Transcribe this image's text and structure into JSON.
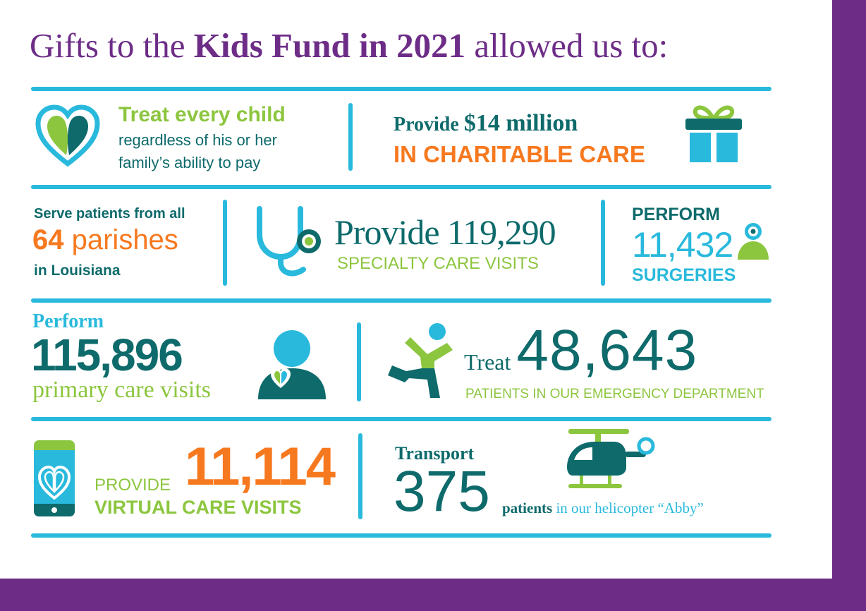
{
  "title": {
    "pre": "Gifts to the ",
    "bold": "Kids Fund in 2021",
    "post": " allowed us to:"
  },
  "row1": {
    "left": {
      "headline": "Treat every child",
      "line2": "regardless of his or her",
      "line3": "family’s ability to pay",
      "icon": "heart-icon"
    },
    "right": {
      "pre": "Provide ",
      "amount": "$14 million",
      "line2": "IN CHARITABLE CARE",
      "icon": "gift-icon"
    }
  },
  "row2": {
    "left": {
      "line1": "Serve patients from all",
      "number": "64",
      "unit": " parishes",
      "line3": "in Louisiana"
    },
    "middle": {
      "text": "Provide 119,290",
      "line2": "SPECIALTY CARE VISITS",
      "icon": "stethoscope-icon"
    },
    "right": {
      "line1": "PERFORM",
      "number": "11,432",
      "line3": "SURGERIES",
      "icon": "patient-icon"
    }
  },
  "row3": {
    "left": {
      "line1": "Perform",
      "number": "115,896",
      "line3": "primary care visits",
      "icon": "doctor-icon"
    },
    "right": {
      "pre": "Treat ",
      "number": "48,643",
      "line2": "PATIENTS IN OUR EMERGENCY DEPARTMENT",
      "icon": "child-icon"
    }
  },
  "row4": {
    "left": {
      "pre": "PROVIDE",
      "number": "11,114",
      "line2": "VIRTUAL CARE VISITS",
      "icon": "phone-icon"
    },
    "right": {
      "line1": "Transport",
      "number": "375",
      "word1": "patients",
      "word2": " in our helicopter “Abby”",
      "icon": "helicopter-icon"
    }
  },
  "colors": {
    "purple": "#6d2d87",
    "teal": "#0e6a6b",
    "green": "#8cc63f",
    "orange": "#f7791f",
    "cyan": "#29b9dc"
  }
}
